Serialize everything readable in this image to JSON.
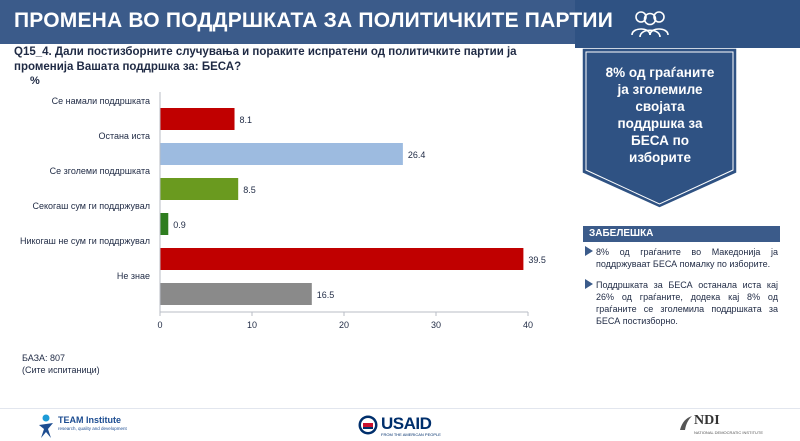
{
  "header": {
    "title": "ПРОМЕНА ВО ПОДДРШКАТА ЗА ПОЛИТИЧКИТЕ ПАРТИИ",
    "question": "Q15_4. Дали постизборните случувања и пораките испратени од политичките партии ја променија Вашата поддршка за: БЕСА?"
  },
  "callout": {
    "text": "8% од граѓаните ја зголемиле својата поддршка за БЕСА по изборите"
  },
  "note": {
    "header": "ЗАБЕЛЕШКА",
    "items": [
      "8% од граѓаните во Македонија ја поддржуваат БЕСА помалку по изборите.",
      "Поддршката за БЕСА останала иста кај 26% од граѓаните, додека кај 8% од граѓаните се зголемила поддршката за БЕСА постизборно."
    ]
  },
  "base": {
    "line1": "БАЗА: 807",
    "line2": "(Сите испитаници)"
  },
  "footer": {
    "team_name": "TEAM Institute",
    "team_tagline": "research, quality and development",
    "usaid_name": "USAID",
    "usaid_tagline": "FROM THE AMERICAN PEOPLE",
    "ndi_name": "NDI",
    "ndi_tagline": "NATIONAL DEMOCRATIC INSTITUTE"
  },
  "chart_data": {
    "type": "bar",
    "orientation": "horizontal",
    "ylabel": "%",
    "categories": [
      "Се намали поддршката",
      "Остана иста",
      "Се зголеми поддршката",
      "Секогаш сум ги поддржувал",
      "Никогаш не сум ги поддржувал",
      "Не знае"
    ],
    "values": [
      8.1,
      26.4,
      8.5,
      0.9,
      39.5,
      16.5
    ],
    "value_labels": [
      "8.1",
      "26.4",
      "8.5",
      "0.9",
      "39.5",
      "16.5"
    ],
    "colors": [
      "#c00000",
      "#9dbbe0",
      "#6a9a1f",
      "#2e7d1f",
      "#c00000",
      "#8a8a8a"
    ],
    "xlim": [
      0,
      40
    ],
    "xticks": [
      0,
      10,
      20,
      30,
      40
    ],
    "grid": false,
    "legend": "none"
  },
  "colors": {
    "brand": "#3b5b8a",
    "callout": "#2f5283"
  }
}
